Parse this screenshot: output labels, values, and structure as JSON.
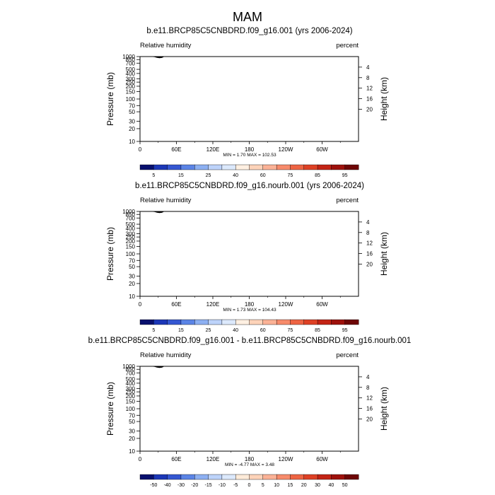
{
  "figure": {
    "title": "MAM"
  },
  "palette": {
    "abs": [
      "#08106e",
      "#1c37b7",
      "#3557d2",
      "#5b84e6",
      "#8db0f2",
      "#bdd3fa",
      "#dce9fc",
      "#fff0e2",
      "#fdd3b9",
      "#fbb296",
      "#f78b6b",
      "#ee6443",
      "#de4125",
      "#c32415",
      "#9e110c",
      "#6e0606"
    ],
    "diff": [
      "#08106e",
      "#1c37b7",
      "#3557d2",
      "#5b84e6",
      "#8db0f2",
      "#bdd3fa",
      "#dce9fc",
      "#fdebd9",
      "#fdd3b9",
      "#fbb296",
      "#f78b6b",
      "#ee6443",
      "#de4125",
      "#c32415",
      "#9e110c",
      "#6e0606"
    ],
    "terrain": "#000000",
    "frame": "#000000"
  },
  "chart_data": [
    {
      "type": "heatmap",
      "title": "b.e11.BRCP85C5CNBDRD.f09_g16.001 (yrs 2006-2024)",
      "left_label": "Relative humidity",
      "right_label": "percent",
      "ylabel": "Pressure (mb)",
      "ylabel_right": "Height (km)",
      "x_ticks": [
        "0",
        "60E",
        "120E",
        "180",
        "120W",
        "60W"
      ],
      "y_ticks": [
        "1000",
        "850",
        "700",
        "500",
        "400",
        "300",
        "250",
        "200",
        "150",
        "100",
        "70",
        "50",
        "30",
        "20",
        "10"
      ],
      "y2_ticks": [
        "4",
        "8",
        "12",
        "16",
        "20"
      ],
      "stats": "MIN =    1.70   MAX = 102.53",
      "min": 1.7,
      "max": 102.53,
      "colorbar": [
        "5",
        "15",
        "25",
        "40",
        "60",
        "75",
        "85",
        "95"
      ],
      "color_levels": [
        5,
        10,
        15,
        20,
        25,
        30,
        40,
        50,
        60,
        70,
        75,
        80,
        85,
        90,
        95
      ]
    },
    {
      "type": "heatmap",
      "title": "b.e11.BRCP85C5CNBDRD.f09_g16.nourb.001 (yrs 2006-2024)",
      "left_label": "Relative humidity",
      "right_label": "percent",
      "ylabel": "Pressure (mb)",
      "ylabel_right": "Height (km)",
      "x_ticks": [
        "0",
        "60E",
        "120E",
        "180",
        "120W",
        "60W"
      ],
      "y_ticks": [
        "1000",
        "850",
        "700",
        "500",
        "400",
        "300",
        "250",
        "200",
        "150",
        "100",
        "70",
        "50",
        "30",
        "20",
        "10"
      ],
      "y2_ticks": [
        "4",
        "8",
        "12",
        "16",
        "20"
      ],
      "stats": "MIN =    1.73   MAX = 104.43",
      "min": 1.73,
      "max": 104.43,
      "colorbar": [
        "5",
        "15",
        "25",
        "40",
        "60",
        "75",
        "85",
        "95"
      ],
      "color_levels": [
        5,
        10,
        15,
        20,
        25,
        30,
        40,
        50,
        60,
        70,
        75,
        80,
        85,
        90,
        95
      ]
    },
    {
      "type": "heatmap",
      "title": "b.e11.BRCP85C5CNBDRD.f09_g16.001 - b.e11.BRCP85C5CNBDRD.f09_g16.nourb.001",
      "left_label": "Relative humidity",
      "right_label": "percent",
      "ylabel": "Pressure (mb)",
      "ylabel_right": "Height (km)",
      "x_ticks": [
        "0",
        "60E",
        "120E",
        "180",
        "120W",
        "60W"
      ],
      "y_ticks": [
        "1000",
        "850",
        "700",
        "500",
        "400",
        "300",
        "250",
        "200",
        "150",
        "100",
        "70",
        "50",
        "30",
        "20",
        "10"
      ],
      "y2_ticks": [
        "4",
        "8",
        "12",
        "16",
        "20"
      ],
      "stats": "MIN =  -4.77   MAX =    3.48",
      "min": -4.77,
      "max": 3.48,
      "colorbar": [
        "-50",
        "-40",
        "-30",
        "-20",
        "-15",
        "-10",
        "-5",
        "0",
        "5",
        "10",
        "15",
        "20",
        "30",
        "40",
        "50"
      ],
      "color_levels": [
        -50,
        -40,
        -30,
        -20,
        -15,
        -10,
        -5,
        0,
        5,
        10,
        15,
        20,
        30,
        40,
        50
      ]
    }
  ]
}
